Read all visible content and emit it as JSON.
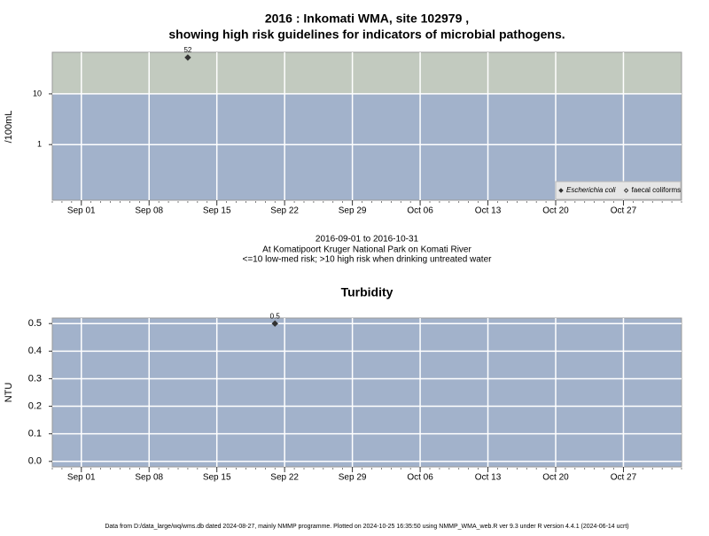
{
  "chart_data": [
    {
      "type": "scatter",
      "title": "2016 : Inkomati WMA, site 102979 ,",
      "subtitle": "showing high risk guidelines for indicators of microbial pathogens.",
      "ylabel": "/100mL",
      "log_y": true,
      "ylim": [
        0.08,
        66
      ],
      "yticks": [
        1,
        10
      ],
      "xlim": [
        "2016-08-29",
        "2016-11-02"
      ],
      "xticks": [
        {
          "value": "2016-09-01",
          "label": "Sep 01"
        },
        {
          "value": "2016-09-08",
          "label": "Sep 08"
        },
        {
          "value": "2016-09-15",
          "label": "Sep 15"
        },
        {
          "value": "2016-09-22",
          "label": "Sep 22"
        },
        {
          "value": "2016-09-29",
          "label": "Sep 29"
        },
        {
          "value": "2016-10-06",
          "label": "Oct 06"
        },
        {
          "value": "2016-10-13",
          "label": "Oct 13"
        },
        {
          "value": "2016-10-20",
          "label": "Oct 20"
        },
        {
          "value": "2016-10-27",
          "label": "Oct 27"
        }
      ],
      "threshold": 10,
      "band_colors": [
        "#a2b2cb",
        "#c2cabf"
      ],
      "grid": true,
      "legend": "bottom-right",
      "series": [
        {
          "name": "Escherichia coli",
          "marker": "filled",
          "color": "#333333",
          "x": [
            "2016-09-12"
          ],
          "values": [
            52
          ]
        },
        {
          "name": "faecal coliforms",
          "marker": "open",
          "color": "#333333",
          "x": [],
          "values": []
        }
      ],
      "notes": [
        "2016-09-01 to 2016-10-31",
        "At Komatipoort Kruger National Park on Komati River",
        "<=10 low-med risk; >10 high risk when drinking untreated water"
      ]
    },
    {
      "type": "scatter",
      "title": "Turbidity",
      "ylabel": "NTU",
      "log_y": false,
      "ylim": [
        -0.02,
        0.52
      ],
      "yticks": [
        {
          "value": 0,
          "label": "0.0"
        },
        0.1,
        0.2,
        0.3,
        0.4,
        {
          "value": 0.5,
          "label": "0.5"
        }
      ],
      "xlim": [
        "2016-08-29",
        "2016-11-02"
      ],
      "xticks": [
        {
          "value": "2016-09-01",
          "label": "Sep 01"
        },
        {
          "value": "2016-09-08",
          "label": "Sep 08"
        },
        {
          "value": "2016-09-15",
          "label": "Sep 15"
        },
        {
          "value": "2016-09-22",
          "label": "Sep 22"
        },
        {
          "value": "2016-09-29",
          "label": "Sep 29"
        },
        {
          "value": "2016-10-06",
          "label": "Oct 06"
        },
        {
          "value": "2016-10-13",
          "label": "Oct 13"
        },
        {
          "value": "2016-10-20",
          "label": "Oct 20"
        },
        {
          "value": "2016-10-27",
          "label": "Oct 27"
        }
      ],
      "band_colors": [
        "#a2b2cb"
      ],
      "grid": true,
      "color": "#333333",
      "x": [
        "2016-09-21"
      ],
      "values": [
        0.5
      ],
      "value_labels": [
        "0.5"
      ]
    }
  ],
  "footer": "Data from D:/data_large/wq/wms.db dated 2024-08-27, mainly NMMP programme. Plotted on 2024-10-25 16:35:50 using NMMP_WMA_web.R ver 9.3 under R version 4.4.1 (2024-06-14 ucrt)"
}
